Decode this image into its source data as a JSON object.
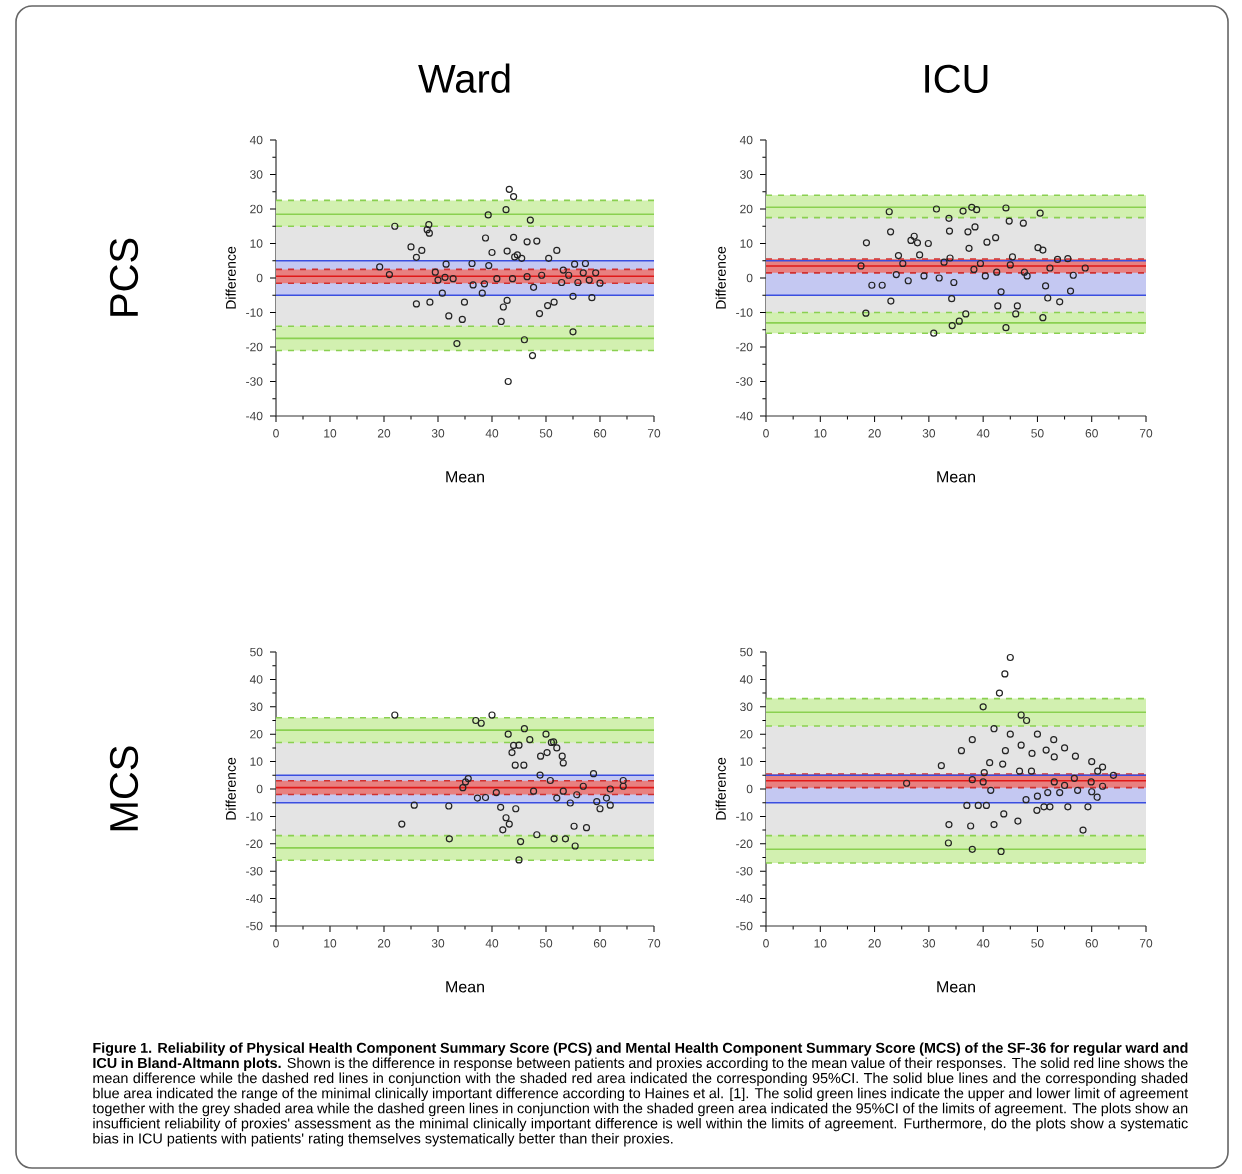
{
  "chart_data": [
    {
      "type": "scatter",
      "title": "Ward",
      "xlabel": "Mean",
      "ylabel": "Difference",
      "color": "#222222",
      "marker": "circle",
      "xlim": [
        0,
        70
      ],
      "ylim": [
        -40,
        40
      ],
      "xticks": [
        0,
        10,
        20,
        30,
        40,
        50,
        60,
        70
      ],
      "yticks": [
        -40,
        -30,
        -20,
        -10,
        0,
        10,
        20,
        30,
        40
      ],
      "x": [
        19.2,
        21,
        22,
        25,
        26,
        27,
        26,
        28,
        28.3,
        28.4,
        28.5,
        29.5,
        30,
        30.8,
        31.5,
        31.3,
        32,
        32.8,
        33.5,
        34.5,
        34.9,
        36.3,
        36.5,
        38.2,
        38.6,
        38.8,
        39.3,
        39.4,
        40,
        40.9,
        41.7,
        42.1,
        42.6,
        42.8,
        43,
        42.8,
        43.2,
        44,
        44,
        43.8,
        44.7,
        45.5,
        46,
        46.5,
        47.1,
        47.5,
        47.7,
        48.3,
        48.8,
        49.2,
        50.3,
        50.5,
        51.5,
        52,
        52.9,
        53.2,
        55,
        55,
        55.3,
        55.9,
        56.9,
        57.3,
        58,
        58.5,
        59.2,
        60,
        54.2,
        46.5,
        44.2
      ],
      "values": [
        3.2,
        1,
        15,
        9,
        6,
        8,
        -7.5,
        14,
        15.5,
        13,
        -7,
        1.7,
        -0.6,
        -4.4,
        4,
        0.2,
        -11,
        -0.2,
        -19,
        -12,
        -7,
        4.2,
        -2,
        -4.4,
        -1.7,
        11.6,
        18.3,
        3.6,
        7.4,
        -0.2,
        -12.6,
        -8.4,
        19.8,
        -6.5,
        -30,
        7.8,
        25.7,
        23.6,
        11.8,
        -0.2,
        6.7,
        5.7,
        -17.9,
        10.5,
        16.8,
        -22.5,
        -2.7,
        10.7,
        -10.3,
        0.8,
        -8,
        5.7,
        -7,
        8,
        -1.3,
        2.3,
        -15.6,
        -5.3,
        4,
        -1.3,
        1.5,
        4.2,
        -0.6,
        -5.7,
        1.5,
        -1.5,
        0.8,
        0.4,
        6.1
      ],
      "bands": [
        {
          "axis": "y",
          "from": -17.5,
          "to": 18.5,
          "color": "#e4e4e4"
        },
        {
          "axis": "y",
          "from": -21,
          "to": -14,
          "color": "#d2f0b0"
        },
        {
          "axis": "y",
          "from": 15,
          "to": 22.5,
          "color": "#d2f0b0"
        },
        {
          "axis": "y",
          "from": -5,
          "to": 5,
          "color": "#c4c8f2"
        },
        {
          "axis": "y",
          "from": -1.5,
          "to": 2.5,
          "color": "#e88080"
        }
      ],
      "ref_lines": [
        {
          "axis": "y",
          "value": 0.5,
          "color": "#e01818",
          "line_style": "solid"
        },
        {
          "axis": "y",
          "value": -1.5,
          "color": "#d03030",
          "line_style": "dashed"
        },
        {
          "axis": "y",
          "value": 2.5,
          "color": "#d03030",
          "line_style": "dashed"
        },
        {
          "axis": "y",
          "value": -5,
          "color": "#3a4ee0",
          "line_style": "solid"
        },
        {
          "axis": "y",
          "value": 5,
          "color": "#3a4ee0",
          "line_style": "solid"
        },
        {
          "axis": "y",
          "value": -17.5,
          "color": "#8ad050",
          "line_style": "solid"
        },
        {
          "axis": "y",
          "value": 18.5,
          "color": "#8ad050",
          "line_style": "solid"
        },
        {
          "axis": "y",
          "value": -21,
          "color": "#8ad050",
          "line_style": "dashed"
        },
        {
          "axis": "y",
          "value": -14,
          "color": "#8ad050",
          "line_style": "dashed"
        },
        {
          "axis": "y",
          "value": 15,
          "color": "#8ad050",
          "line_style": "dashed"
        },
        {
          "axis": "y",
          "value": 22.5,
          "color": "#8ad050",
          "line_style": "dashed"
        }
      ],
      "annotations": [
        "PCS"
      ]
    },
    {
      "type": "scatter",
      "title": "ICU",
      "xlabel": "Mean",
      "ylabel": "Difference",
      "color": "#222222",
      "marker": "circle",
      "xlim": [
        0,
        70
      ],
      "ylim": [
        -40,
        40
      ],
      "xticks": [
        0,
        10,
        20,
        30,
        40,
        50,
        60,
        70
      ],
      "yticks": [
        -40,
        -30,
        -20,
        -10,
        0,
        10,
        20,
        30,
        40
      ],
      "x": [
        17.5,
        18.5,
        18.4,
        19.5,
        21.4,
        22.7,
        22.95,
        23,
        24,
        24.4,
        25.2,
        26.2,
        26.7,
        27.3,
        27.9,
        28.3,
        29.1,
        29.9,
        30.9,
        31.4,
        31.9,
        32.8,
        33.7,
        33.8,
        33.9,
        34.2,
        34.6,
        34.3,
        35.6,
        36.3,
        36.8,
        37.2,
        37.4,
        37.9,
        38.5,
        38.8,
        39.5,
        40.4,
        40.7,
        42.3,
        42.7,
        43.3,
        44.2,
        44.2,
        44.8,
        45.4,
        46,
        46.3,
        47.4,
        47.6,
        48.1,
        50.1,
        50.5,
        51,
        51,
        51.5,
        51.9,
        52.3,
        53.7,
        54.1,
        55.6,
        56.1,
        56.6,
        58.8,
        42.5,
        38.3,
        45
      ],
      "values": [
        3.5,
        10.2,
        -10.2,
        -2.1,
        -2.1,
        19.2,
        13.4,
        -6.7,
        1,
        6.5,
        4.2,
        -0.8,
        10.9,
        12.1,
        10.2,
        6.7,
        0.6,
        10,
        -16,
        20,
        0,
        4.6,
        17.3,
        13.6,
        5.8,
        -6,
        -1.3,
        -13.8,
        -12.5,
        19.4,
        -10.4,
        13.4,
        8.6,
        20.5,
        14.8,
        19.8,
        4.2,
        0.6,
        10.4,
        11.7,
        -8.1,
        -4,
        20.3,
        -14.4,
        16.5,
        6.1,
        -10.4,
        -8.1,
        15.9,
        1.7,
        0.6,
        8.8,
        18.8,
        8.1,
        -11.5,
        -2.3,
        -5.8,
        2.9,
        5.4,
        -6.9,
        5.6,
        -3.8,
        0.8,
        2.9,
        1.7,
        2.5,
        3.8
      ],
      "bands": [
        {
          "axis": "y",
          "from": -13,
          "to": 20.5,
          "color": "#e4e4e4"
        },
        {
          "axis": "y",
          "from": -16,
          "to": -10,
          "color": "#d2f0b0"
        },
        {
          "axis": "y",
          "from": 17.5,
          "to": 24,
          "color": "#d2f0b0"
        },
        {
          "axis": "y",
          "from": -5,
          "to": 5,
          "color": "#c4c8f2"
        },
        {
          "axis": "y",
          "from": 1.5,
          "to": 5.5,
          "color": "#e88080"
        }
      ],
      "ref_lines": [
        {
          "axis": "y",
          "value": 3.5,
          "color": "#e01818",
          "line_style": "solid"
        },
        {
          "axis": "y",
          "value": 1.5,
          "color": "#d03030",
          "line_style": "dashed"
        },
        {
          "axis": "y",
          "value": 5.5,
          "color": "#d03030",
          "line_style": "dashed"
        },
        {
          "axis": "y",
          "value": -5,
          "color": "#3a4ee0",
          "line_style": "solid"
        },
        {
          "axis": "y",
          "value": 5,
          "color": "#3a4ee0",
          "line_style": "solid"
        },
        {
          "axis": "y",
          "value": -13,
          "color": "#8ad050",
          "line_style": "solid"
        },
        {
          "axis": "y",
          "value": 20.5,
          "color": "#8ad050",
          "line_style": "solid"
        },
        {
          "axis": "y",
          "value": -16,
          "color": "#8ad050",
          "line_style": "dashed"
        },
        {
          "axis": "y",
          "value": -10,
          "color": "#8ad050",
          "line_style": "dashed"
        },
        {
          "axis": "y",
          "value": 17.5,
          "color": "#8ad050",
          "line_style": "dashed"
        },
        {
          "axis": "y",
          "value": 24,
          "color": "#8ad050",
          "line_style": "dashed"
        }
      ]
    },
    {
      "type": "scatter",
      "xlabel": "Mean",
      "ylabel": "Difference",
      "color": "#222222",
      "marker": "circle",
      "xlim": [
        0,
        70
      ],
      "ylim": [
        -50,
        50
      ],
      "xticks": [
        0,
        10,
        20,
        30,
        40,
        50,
        60,
        70
      ],
      "yticks": [
        -50,
        -40,
        -30,
        -20,
        -10,
        0,
        10,
        20,
        30,
        40,
        50
      ],
      "x": [
        23.3,
        25.6,
        32,
        32.1,
        34.6,
        35.1,
        35.6,
        37.3,
        38.8,
        40.8,
        41.6,
        42,
        42.6,
        43.2,
        44.4,
        45.3,
        45,
        43.7,
        44.3,
        45.9,
        48.3,
        47.7,
        48.9,
        51.5,
        53.6,
        55.4,
        55.2,
        57.5,
        50.8,
        52,
        53.2,
        54.5,
        55.7,
        56.9,
        58.8,
        59.4,
        60,
        61.2,
        61.9,
        64.3,
        64.3,
        50.2,
        51.4,
        53.2,
        44,
        61.9,
        22,
        37,
        38,
        40,
        43,
        46,
        47,
        50,
        51,
        52,
        49,
        53,
        45
      ],
      "values": [
        -12.8,
        -5.9,
        -6.2,
        -18.2,
        0.5,
        2.6,
        3.8,
        -3.3,
        -3.1,
        -1.3,
        -6.7,
        -14.9,
        -10.5,
        -12.8,
        -7.2,
        -19.2,
        -25.9,
        13.3,
        8.7,
        8.7,
        -16.7,
        -0.8,
        5.1,
        -18.2,
        -18.2,
        -20.8,
        -13.6,
        -14.1,
        3.1,
        -3.3,
        -0.8,
        -5.1,
        -2.1,
        1,
        5.6,
        -4.6,
        -7.2,
        -3.3,
        0,
        3.1,
        1,
        13.3,
        17.2,
        9.5,
        15.9,
        -5.9,
        27,
        25,
        24,
        27,
        20,
        22,
        18,
        20,
        17,
        15,
        12,
        12,
        16
      ],
      "bands": [
        {
          "axis": "y",
          "from": -21.5,
          "to": 21.5,
          "color": "#e4e4e4"
        },
        {
          "axis": "y",
          "from": -26,
          "to": -17,
          "color": "#d2f0b0"
        },
        {
          "axis": "y",
          "from": 17,
          "to": 26,
          "color": "#d2f0b0"
        },
        {
          "axis": "y",
          "from": -5,
          "to": 5,
          "color": "#c4c8f2"
        },
        {
          "axis": "y",
          "from": -2,
          "to": 3,
          "color": "#e88080"
        }
      ],
      "ref_lines": [
        {
          "axis": "y",
          "value": 0.5,
          "color": "#e01818",
          "line_style": "solid"
        },
        {
          "axis": "y",
          "value": -2,
          "color": "#d03030",
          "line_style": "dashed"
        },
        {
          "axis": "y",
          "value": 3,
          "color": "#d03030",
          "line_style": "dashed"
        },
        {
          "axis": "y",
          "value": -5,
          "color": "#3a4ee0",
          "line_style": "solid"
        },
        {
          "axis": "y",
          "value": 5,
          "color": "#3a4ee0",
          "line_style": "solid"
        },
        {
          "axis": "y",
          "value": -21.5,
          "color": "#8ad050",
          "line_style": "solid"
        },
        {
          "axis": "y",
          "value": 21.5,
          "color": "#8ad050",
          "line_style": "solid"
        },
        {
          "axis": "y",
          "value": -26,
          "color": "#8ad050",
          "line_style": "dashed"
        },
        {
          "axis": "y",
          "value": -17,
          "color": "#8ad050",
          "line_style": "dashed"
        },
        {
          "axis": "y",
          "value": 17,
          "color": "#8ad050",
          "line_style": "dashed"
        },
        {
          "axis": "y",
          "value": 26,
          "color": "#8ad050",
          "line_style": "dashed"
        }
      ],
      "annotations": [
        "MCS"
      ]
    },
    {
      "type": "scatter",
      "xlabel": "Mean",
      "ylabel": "Difference",
      "color": "#222222",
      "marker": "circle",
      "xlim": [
        0,
        70
      ],
      "ylim": [
        -50,
        50
      ],
      "xticks": [
        0,
        10,
        20,
        30,
        40,
        50,
        60,
        70
      ],
      "yticks": [
        -50,
        -40,
        -30,
        -20,
        -10,
        0,
        10,
        20,
        30,
        40,
        50
      ],
      "x": [
        25.9,
        32.3,
        33.7,
        33.6,
        37.7,
        38,
        38,
        37,
        39.1,
        40.6,
        40,
        40.2,
        41.4,
        41.2,
        42,
        43.3,
        43.8,
        44.1,
        43.6,
        46.4,
        46.7,
        47.9,
        48.9,
        49.9,
        50,
        51.2,
        51.9,
        52.3,
        53.1,
        51.6,
        53.1,
        54.1,
        55,
        55.6,
        56.8,
        57.4,
        58.4,
        59.3,
        59.9,
        61.1,
        45,
        44,
        43,
        40,
        47,
        48,
        42,
        50,
        53,
        38,
        45,
        55,
        36,
        57,
        47,
        49,
        60,
        62,
        61,
        62,
        64,
        60
      ],
      "values": [
        2.1,
        8.5,
        -13,
        -19.7,
        -13.5,
        -22,
        3.4,
        -6,
        -6,
        -6,
        2.6,
        6,
        -0.5,
        9.6,
        -13,
        -22.8,
        -9.1,
        14,
        9.1,
        -11.7,
        6.5,
        -3.9,
        6.5,
        -7.8,
        -2.6,
        -6.5,
        -1.3,
        -6.5,
        2.6,
        14.2,
        11.7,
        -1.3,
        1.3,
        -6.5,
        3.9,
        -0.5,
        -15,
        -6.5,
        2.6,
        6.5,
        48,
        42,
        35,
        30,
        27,
        25,
        22,
        20,
        18,
        18,
        20,
        15,
        14,
        12,
        16,
        13,
        10,
        8,
        -3,
        1,
        5,
        -1
      ],
      "bands": [
        {
          "axis": "y",
          "from": -22,
          "to": 28,
          "color": "#e4e4e4"
        },
        {
          "axis": "y",
          "from": -27,
          "to": -17,
          "color": "#d2f0b0"
        },
        {
          "axis": "y",
          "from": 23,
          "to": 33,
          "color": "#d2f0b0"
        },
        {
          "axis": "y",
          "from": -5,
          "to": 5,
          "color": "#c4c8f2"
        },
        {
          "axis": "y",
          "from": 0.5,
          "to": 5.5,
          "color": "#e88080"
        }
      ],
      "ref_lines": [
        {
          "axis": "y",
          "value": 3,
          "color": "#e01818",
          "line_style": "solid"
        },
        {
          "axis": "y",
          "value": 0.5,
          "color": "#d03030",
          "line_style": "dashed"
        },
        {
          "axis": "y",
          "value": 5.5,
          "color": "#d03030",
          "line_style": "dashed"
        },
        {
          "axis": "y",
          "value": -5,
          "color": "#3a4ee0",
          "line_style": "solid"
        },
        {
          "axis": "y",
          "value": 5,
          "color": "#3a4ee0",
          "line_style": "solid"
        },
        {
          "axis": "y",
          "value": -22,
          "color": "#8ad050",
          "line_style": "solid"
        },
        {
          "axis": "y",
          "value": 28,
          "color": "#8ad050",
          "line_style": "solid"
        },
        {
          "axis": "y",
          "value": -27,
          "color": "#8ad050",
          "line_style": "dashed"
        },
        {
          "axis": "y",
          "value": -17,
          "color": "#8ad050",
          "line_style": "dashed"
        },
        {
          "axis": "y",
          "value": 23,
          "color": "#8ad050",
          "line_style": "dashed"
        },
        {
          "axis": "y",
          "value": 33,
          "color": "#8ad050",
          "line_style": "dashed"
        }
      ],
      "annotations": [
        "**Figure 1. Reliability of Physical Health Component Summary Score (PCS) and Mental Health Component Summary Score (MCS) of the SF-36 for regular ward and ICU in Bland-Altmann plots.** Shown is the difference in response between patients and proxies according to the mean value of their responses. The solid red line shows the mean difference while the dashed red lines in conjunction with the shaded red area indicated the corresponding 95%CI. The solid blue lines and the corresponding shaded blue area indicated the range of the minimal clinically important difference according to Haines et al. [1]. The solid green lines indicate the upper and lower limit of agreement together with the grey shaded area while the dashed green lines in conjunction with the shaded green area indicated the 95%CI of the limits of agreement. The plots show an insufficient reliability of proxies' assessment as the minimal clinically important difference is well within the limits of agreement. Furthermore, do the plots show a systematic bias in ICU patients with patients' rating themselves systematically better than their proxies."
      ]
    }
  ]
}
